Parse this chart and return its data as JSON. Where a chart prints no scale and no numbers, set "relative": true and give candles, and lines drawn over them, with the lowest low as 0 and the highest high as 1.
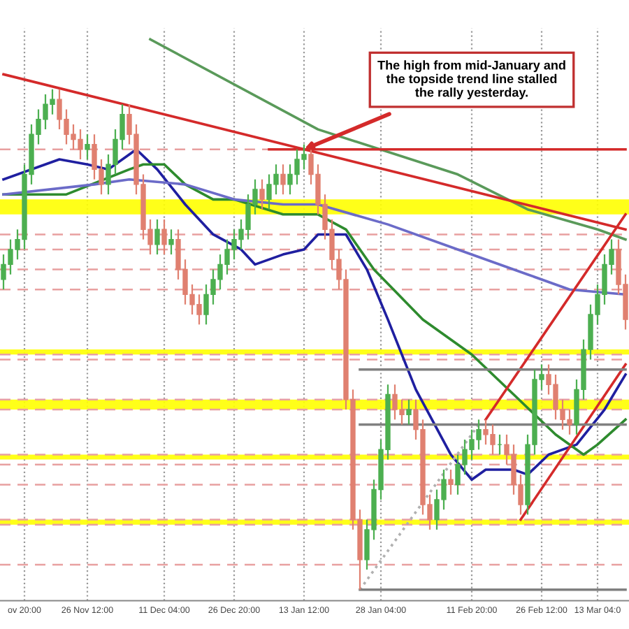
{
  "chart_data": {
    "type": "candlestick",
    "relative": true,
    "categories": [
      null,
      null,
      null,
      "ov 20:00",
      null,
      null,
      null,
      null,
      null,
      null,
      null,
      null,
      "26 Nov 12:00",
      null,
      null,
      null,
      null,
      null,
      null,
      null,
      null,
      null,
      null,
      "11 Dec 04:00",
      null,
      null,
      null,
      null,
      null,
      null,
      null,
      null,
      null,
      "26 Dec 20:00",
      null,
      null,
      null,
      null,
      null,
      null,
      null,
      null,
      null,
      "13 Jan 12:00",
      null,
      null,
      null,
      null,
      null,
      null,
      null,
      null,
      null,
      null,
      "28 Jan 04:00",
      null,
      null,
      null,
      null,
      null,
      null,
      null,
      null,
      null,
      null,
      null,
      null,
      "11 Feb 20:00",
      null,
      null,
      null,
      null,
      null,
      null,
      null,
      null,
      null,
      "26 Feb 12:00",
      null,
      null,
      null,
      null,
      null,
      null,
      null,
      "13 Mar 04:0",
      null,
      null,
      null,
      null
    ],
    "ohlc": [
      [
        0.62,
        0.67,
        0.6,
        0.65
      ],
      [
        0.65,
        0.7,
        0.63,
        0.68
      ],
      [
        0.68,
        0.72,
        0.66,
        0.7
      ],
      [
        0.7,
        0.85,
        0.68,
        0.83
      ],
      [
        0.83,
        0.93,
        0.81,
        0.91
      ],
      [
        0.91,
        0.96,
        0.89,
        0.94
      ],
      [
        0.94,
        0.99,
        0.92,
        0.97
      ],
      [
        0.97,
        1.0,
        0.95,
        0.98
      ],
      [
        0.98,
        1.0,
        0.92,
        0.94
      ],
      [
        0.94,
        0.96,
        0.89,
        0.91
      ],
      [
        0.91,
        0.93,
        0.88,
        0.9
      ],
      [
        0.9,
        0.92,
        0.86,
        0.88
      ],
      [
        0.88,
        0.91,
        0.86,
        0.89
      ],
      [
        0.89,
        0.91,
        0.82,
        0.84
      ],
      [
        0.84,
        0.86,
        0.79,
        0.81
      ],
      [
        0.81,
        0.87,
        0.79,
        0.85
      ],
      [
        0.85,
        0.92,
        0.83,
        0.9
      ],
      [
        0.9,
        0.97,
        0.88,
        0.95
      ],
      [
        0.95,
        0.97,
        0.89,
        0.91
      ],
      [
        0.91,
        0.93,
        0.79,
        0.81
      ],
      [
        0.81,
        0.83,
        0.7,
        0.72
      ],
      [
        0.72,
        0.74,
        0.67,
        0.69
      ],
      [
        0.69,
        0.74,
        0.67,
        0.72
      ],
      [
        0.72,
        0.74,
        0.67,
        0.69
      ],
      [
        0.69,
        0.72,
        0.67,
        0.7
      ],
      [
        0.7,
        0.72,
        0.62,
        0.64
      ],
      [
        0.64,
        0.66,
        0.57,
        0.59
      ],
      [
        0.59,
        0.61,
        0.55,
        0.57
      ],
      [
        0.57,
        0.59,
        0.53,
        0.55
      ],
      [
        0.55,
        0.61,
        0.53,
        0.59
      ],
      [
        0.59,
        0.64,
        0.57,
        0.62
      ],
      [
        0.62,
        0.67,
        0.6,
        0.65
      ],
      [
        0.65,
        0.7,
        0.63,
        0.68
      ],
      [
        0.68,
        0.72,
        0.66,
        0.7
      ],
      [
        0.7,
        0.74,
        0.68,
        0.72
      ],
      [
        0.72,
        0.79,
        0.7,
        0.77
      ],
      [
        0.77,
        0.82,
        0.75,
        0.8
      ],
      [
        0.8,
        0.82,
        0.76,
        0.78
      ],
      [
        0.78,
        0.83,
        0.76,
        0.81
      ],
      [
        0.81,
        0.85,
        0.79,
        0.83
      ],
      [
        0.83,
        0.85,
        0.79,
        0.81
      ],
      [
        0.81,
        0.85,
        0.79,
        0.83
      ],
      [
        0.83,
        0.88,
        0.81,
        0.86
      ],
      [
        0.86,
        0.89,
        0.84,
        0.87
      ],
      [
        0.87,
        0.89,
        0.81,
        0.83
      ],
      [
        0.83,
        0.85,
        0.75,
        0.77
      ],
      [
        0.77,
        0.79,
        0.7,
        0.72
      ],
      [
        0.72,
        0.74,
        0.64,
        0.66
      ],
      [
        0.66,
        0.68,
        0.6,
        0.62
      ],
      [
        0.62,
        0.64,
        0.36,
        0.38
      ],
      [
        0.38,
        0.4,
        0.12,
        0.14
      ],
      [
        0.14,
        0.16,
        0.0,
        0.06
      ],
      [
        0.06,
        0.14,
        0.04,
        0.12
      ],
      [
        0.12,
        0.22,
        0.1,
        0.2
      ],
      [
        0.2,
        0.3,
        0.18,
        0.28
      ],
      [
        0.28,
        0.41,
        0.26,
        0.39
      ],
      [
        0.39,
        0.41,
        0.34,
        0.36
      ],
      [
        0.36,
        0.38,
        0.33,
        0.35
      ],
      [
        0.35,
        0.38,
        0.33,
        0.36
      ],
      [
        0.36,
        0.38,
        0.3,
        0.32
      ],
      [
        0.32,
        0.34,
        0.15,
        0.17
      ],
      [
        0.17,
        0.19,
        0.12,
        0.14
      ],
      [
        0.14,
        0.2,
        0.12,
        0.18
      ],
      [
        0.18,
        0.24,
        0.16,
        0.22
      ],
      [
        0.22,
        0.24,
        0.19,
        0.21
      ],
      [
        0.21,
        0.27,
        0.19,
        0.25
      ],
      [
        0.25,
        0.3,
        0.23,
        0.28
      ],
      [
        0.28,
        0.32,
        0.26,
        0.3
      ],
      [
        0.3,
        0.34,
        0.28,
        0.32
      ],
      [
        0.32,
        0.34,
        0.29,
        0.31
      ],
      [
        0.31,
        0.33,
        0.27,
        0.29
      ],
      [
        0.29,
        0.31,
        0.27,
        0.29
      ],
      [
        0.29,
        0.31,
        0.25,
        0.27
      ],
      [
        0.27,
        0.29,
        0.19,
        0.21
      ],
      [
        0.21,
        0.23,
        0.15,
        0.17
      ],
      [
        0.17,
        0.31,
        0.15,
        0.29
      ],
      [
        0.29,
        0.44,
        0.27,
        0.42
      ],
      [
        0.42,
        0.45,
        0.4,
        0.43
      ],
      [
        0.43,
        0.45,
        0.39,
        0.41
      ],
      [
        0.41,
        0.43,
        0.34,
        0.36
      ],
      [
        0.36,
        0.38,
        0.32,
        0.34
      ],
      [
        0.34,
        0.36,
        0.31,
        0.33
      ],
      [
        0.33,
        0.42,
        0.31,
        0.4
      ],
      [
        0.4,
        0.5,
        0.38,
        0.48
      ],
      [
        0.48,
        0.57,
        0.46,
        0.55
      ],
      [
        0.55,
        0.61,
        0.53,
        0.59
      ],
      [
        0.59,
        0.67,
        0.57,
        0.65
      ],
      [
        0.65,
        0.7,
        0.63,
        0.68
      ],
      [
        0.68,
        0.7,
        0.59,
        0.61
      ],
      [
        0.61,
        0.63,
        0.52,
        0.54
      ]
    ],
    "series": [
      {
        "type": "line",
        "color": "#1f1fa0",
        "values": [
          0.82,
          null,
          null,
          null,
          null,
          null,
          null,
          null,
          0.86,
          null,
          null,
          null,
          0.85,
          null,
          null,
          0.84,
          null,
          null,
          0.87,
          0.88,
          null,
          null,
          0.84,
          null,
          null,
          null,
          0.77,
          null,
          null,
          null,
          0.71,
          null,
          null,
          null,
          0.68,
          null,
          0.65,
          null,
          null,
          null,
          0.67,
          null,
          null,
          0.68,
          null,
          0.71,
          null,
          null,
          null,
          0.71,
          null,
          null,
          0.64,
          null,
          null,
          0.54,
          null,
          null,
          null,
          0.4,
          null,
          null,
          null,
          null,
          0.27,
          null,
          null,
          0.22,
          null,
          0.24,
          null,
          null,
          null,
          0.24,
          null,
          0.23,
          null,
          null,
          0.27,
          null,
          null,
          null,
          0.29,
          null,
          null,
          null,
          0.36,
          null,
          null,
          0.43
        ]
      },
      {
        "type": "line",
        "color": "#2e8b2e",
        "values": [
          0.79,
          null,
          null,
          null,
          null,
          null,
          null,
          null,
          null,
          0.79,
          null,
          null,
          null,
          null,
          null,
          null,
          null,
          null,
          0.84,
          null,
          0.85,
          null,
          null,
          0.85,
          null,
          null,
          0.81,
          null,
          null,
          null,
          0.78,
          null,
          null,
          0.78,
          null,
          null,
          null,
          null,
          null,
          null,
          0.75,
          null,
          null,
          null,
          null,
          0.75,
          null,
          null,
          null,
          0.72,
          null,
          null,
          null,
          0.64,
          null,
          null,
          null,
          null,
          null,
          null,
          0.54,
          null,
          null,
          null,
          null,
          null,
          null,
          0.47,
          null,
          null,
          null,
          null,
          null,
          0.39,
          null,
          null,
          null,
          null,
          null,
          0.31,
          null,
          null,
          null,
          0.27,
          null,
          0.29,
          null,
          null,
          null,
          0.34
        ]
      },
      {
        "type": "line",
        "color": "#6b6bc8",
        "values": [
          0.79,
          null,
          null,
          null,
          null,
          null,
          null,
          null,
          null,
          null,
          null,
          null,
          null,
          0.81,
          null,
          null,
          null,
          null,
          0.82,
          null,
          null,
          null,
          null,
          null,
          null,
          null,
          0.81,
          null,
          null,
          null,
          null,
          null,
          null,
          0.78,
          null,
          null,
          null,
          null,
          null,
          null,
          0.77,
          null,
          null,
          null,
          null,
          0.77,
          null,
          null,
          null,
          null,
          null,
          null,
          null,
          null,
          null,
          0.73,
          null,
          null,
          null,
          null,
          null,
          null,
          null,
          null,
          null,
          0.68,
          null,
          null,
          null,
          null,
          null,
          null,
          null,
          null,
          null,
          0.63,
          null,
          null,
          null,
          null,
          null,
          0.6,
          null,
          null,
          null,
          null,
          null,
          null,
          null,
          0.59
        ]
      },
      {
        "type": "line",
        "color": "#5a9a5a",
        "values": [
          null,
          null,
          null,
          null,
          null,
          null,
          null,
          null,
          null,
          null,
          null,
          null,
          null,
          null,
          null,
          null,
          null,
          null,
          null,
          null,
          null,
          1.1,
          null,
          null,
          null,
          null,
          null,
          null,
          null,
          null,
          null,
          null,
          null,
          null,
          null,
          null,
          null,
          null,
          null,
          null,
          null,
          null,
          null,
          null,
          null,
          0.92,
          null,
          null,
          null,
          null,
          null,
          null,
          null,
          null,
          null,
          null,
          null,
          null,
          null,
          null,
          null,
          null,
          null,
          null,
          null,
          0.83,
          null,
          null,
          null,
          null,
          null,
          null,
          null,
          null,
          null,
          0.76,
          null,
          null,
          null,
          null,
          null,
          null,
          null,
          null,
          null,
          0.72,
          null,
          null,
          null,
          0.7
        ]
      },
      {
        "type": "line",
        "color": "#d42a2a",
        "values": [
          1.03,
          null,
          null,
          null,
          null,
          null,
          null,
          null,
          null,
          null,
          null,
          null,
          null,
          null,
          null,
          null,
          null,
          null,
          null,
          null,
          null,
          null,
          null,
          null,
          null,
          null,
          null,
          null,
          null,
          null,
          null,
          null,
          null,
          null,
          null,
          null,
          null,
          null,
          null,
          null,
          null,
          null,
          null,
          null,
          null,
          null,
          null,
          null,
          null,
          null,
          null,
          null,
          null,
          null,
          null,
          null,
          null,
          null,
          null,
          null,
          null,
          null,
          null,
          null,
          null,
          null,
          null,
          null,
          null,
          null,
          null,
          null,
          null,
          null,
          null,
          null,
          null,
          null,
          null,
          null,
          null,
          null,
          null,
          null,
          null,
          null,
          null,
          null,
          null,
          0.72
        ]
      },
      {
        "type": "line",
        "color": "#d42a2a",
        "values": [
          null,
          null,
          null,
          null,
          null,
          null,
          null,
          null,
          null,
          null,
          null,
          null,
          null,
          null,
          null,
          null,
          null,
          null,
          null,
          null,
          null,
          null,
          null,
          null,
          null,
          null,
          null,
          null,
          null,
          null,
          null,
          null,
          null,
          null,
          null,
          null,
          null,
          null,
          0.88,
          null,
          null,
          null,
          null,
          null,
          null,
          null,
          null,
          null,
          null,
          null,
          null,
          null,
          null,
          null,
          null,
          null,
          null,
          null,
          null,
          null,
          null,
          null,
          null,
          null,
          null,
          null,
          null,
          null,
          null,
          null,
          null,
          null,
          null,
          null,
          null,
          null,
          null,
          null,
          null,
          null,
          null,
          null,
          null,
          null,
          null,
          null,
          null,
          null,
          null,
          0.88
        ]
      },
      {
        "type": "line",
        "color": "#d42a2a",
        "values": [
          null,
          null,
          null,
          null,
          null,
          null,
          null,
          null,
          null,
          null,
          null,
          null,
          null,
          null,
          null,
          null,
          null,
          null,
          null,
          null,
          null,
          null,
          null,
          null,
          null,
          null,
          null,
          null,
          null,
          null,
          null,
          null,
          null,
          null,
          null,
          null,
          null,
          null,
          null,
          null,
          null,
          null,
          null,
          null,
          null,
          null,
          null,
          null,
          null,
          null,
          null,
          null,
          null,
          null,
          null,
          null,
          null,
          null,
          null,
          null,
          null,
          null,
          null,
          null,
          null,
          null,
          null,
          null,
          null,
          0.34,
          null,
          null,
          null,
          null,
          null,
          null,
          null,
          null,
          null,
          null,
          null,
          null,
          null,
          null,
          null,
          null,
          null,
          null,
          null,
          0.75
        ]
      },
      {
        "type": "line",
        "color": "#d42a2a",
        "values": [
          null,
          null,
          null,
          null,
          null,
          null,
          null,
          null,
          null,
          null,
          null,
          null,
          null,
          null,
          null,
          null,
          null,
          null,
          null,
          null,
          null,
          null,
          null,
          null,
          null,
          null,
          null,
          null,
          null,
          null,
          null,
          null,
          null,
          null,
          null,
          null,
          null,
          null,
          null,
          null,
          null,
          null,
          null,
          null,
          null,
          null,
          null,
          null,
          null,
          null,
          null,
          null,
          null,
          null,
          null,
          null,
          null,
          null,
          null,
          null,
          null,
          null,
          null,
          null,
          null,
          null,
          null,
          null,
          null,
          null,
          null,
          null,
          null,
          null,
          0.14,
          null,
          null,
          null,
          null,
          null,
          null,
          null,
          null,
          null,
          null,
          null,
          null,
          null,
          null,
          0.45
        ]
      },
      {
        "type": "line",
        "color": "#b0b0b0",
        "line_style": "dotted",
        "values": [
          null,
          null,
          null,
          null,
          null,
          null,
          null,
          null,
          null,
          null,
          null,
          null,
          null,
          null,
          null,
          null,
          null,
          null,
          null,
          null,
          null,
          null,
          null,
          null,
          null,
          null,
          null,
          null,
          null,
          null,
          null,
          null,
          null,
          null,
          null,
          null,
          null,
          null,
          null,
          null,
          null,
          null,
          null,
          null,
          null,
          null,
          null,
          null,
          null,
          null,
          null,
          0.0,
          null,
          null,
          null,
          null,
          null,
          null,
          null,
          null,
          null,
          null,
          null,
          null,
          null,
          null,
          null,
          null,
          0.33,
          null,
          null,
          null,
          null,
          null,
          null,
          null,
          null,
          null,
          null,
          null,
          null,
          null,
          null,
          null,
          null,
          null,
          null,
          null,
          null,
          null
        ]
      },
      {
        "type": "line",
        "color": "#808080",
        "values": [
          null,
          null,
          null,
          null,
          null,
          null,
          null,
          null,
          null,
          null,
          null,
          null,
          null,
          null,
          null,
          null,
          null,
          null,
          null,
          null,
          null,
          null,
          null,
          null,
          null,
          null,
          null,
          null,
          null,
          null,
          null,
          null,
          null,
          null,
          null,
          null,
          null,
          null,
          null,
          null,
          null,
          null,
          null,
          null,
          null,
          null,
          null,
          null,
          null,
          null,
          null,
          0.44,
          null,
          null,
          null,
          null,
          null,
          null,
          null,
          null,
          null,
          null,
          null,
          null,
          null,
          null,
          null,
          null,
          null,
          null,
          null,
          null,
          null,
          null,
          null,
          null,
          null,
          null,
          null,
          null,
          null,
          null,
          null,
          null,
          null,
          null,
          null,
          null,
          null,
          0.44
        ]
      },
      {
        "type": "line",
        "color": "#808080",
        "values": [
          null,
          null,
          null,
          null,
          null,
          null,
          null,
          null,
          null,
          null,
          null,
          null,
          null,
          null,
          null,
          null,
          null,
          null,
          null,
          null,
          null,
          null,
          null,
          null,
          null,
          null,
          null,
          null,
          null,
          null,
          null,
          null,
          null,
          null,
          null,
          null,
          null,
          null,
          null,
          null,
          null,
          null,
          null,
          null,
          null,
          null,
          null,
          null,
          null,
          null,
          null,
          0.33,
          null,
          null,
          null,
          null,
          null,
          null,
          null,
          null,
          null,
          null,
          null,
          null,
          null,
          null,
          null,
          null,
          null,
          null,
          null,
          null,
          null,
          null,
          null,
          null,
          null,
          null,
          null,
          null,
          null,
          null,
          null,
          null,
          null,
          null,
          null,
          null,
          null,
          0.33
        ]
      },
      {
        "type": "line",
        "color": "#808080",
        "values": [
          null,
          null,
          null,
          null,
          null,
          null,
          null,
          null,
          null,
          null,
          null,
          null,
          null,
          null,
          null,
          null,
          null,
          null,
          null,
          null,
          null,
          null,
          null,
          null,
          null,
          null,
          null,
          null,
          null,
          null,
          null,
          null,
          null,
          null,
          null,
          null,
          null,
          null,
          null,
          null,
          null,
          null,
          null,
          null,
          null,
          null,
          null,
          null,
          null,
          null,
          null,
          0.0,
          null,
          null,
          null,
          null,
          null,
          null,
          null,
          null,
          null,
          null,
          null,
          null,
          null,
          null,
          null,
          null,
          null,
          null,
          null,
          null,
          null,
          null,
          null,
          null,
          null,
          null,
          null,
          null,
          null,
          null,
          null,
          null,
          null,
          null,
          null,
          null,
          null,
          0.0
        ]
      }
    ],
    "grid": "x",
    "bands": [
      {
        "axis": "y",
        "from": 0.75,
        "to": 0.78,
        "color": "#ffff00"
      },
      {
        "axis": "y",
        "from": 0.47,
        "to": 0.48,
        "color": "#ffff00"
      },
      {
        "axis": "y",
        "from": 0.36,
        "to": 0.38,
        "color": "#ffff00"
      },
      {
        "axis": "y",
        "from": 0.26,
        "to": 0.27,
        "color": "#ffff00"
      },
      {
        "axis": "y",
        "from": 0.13,
        "to": 0.14,
        "color": "#ffff00"
      }
    ],
    "ref_lines": [
      {
        "axis": "y",
        "value": 0.88,
        "color": "#e8a0a0",
        "line_style": "dashed"
      },
      {
        "axis": "y",
        "value": 0.71,
        "color": "#e8a0a0",
        "line_style": "dashed"
      },
      {
        "axis": "y",
        "value": 0.68,
        "color": "#e8a0a0",
        "line_style": "dashed"
      },
      {
        "axis": "y",
        "value": 0.64,
        "color": "#e8a0a0",
        "line_style": "dashed"
      },
      {
        "axis": "y",
        "value": 0.6,
        "color": "#e8a0a0",
        "line_style": "dashed"
      },
      {
        "axis": "y",
        "value": 0.47,
        "color": "#e8a0a0",
        "line_style": "dashed"
      },
      {
        "axis": "y",
        "value": 0.46,
        "color": "#e8a0a0",
        "line_style": "dashed"
      },
      {
        "axis": "y",
        "value": 0.38,
        "color": "#e8a0a0",
        "line_style": "dashed"
      },
      {
        "axis": "y",
        "value": 0.36,
        "color": "#e8a0a0",
        "line_style": "dashed"
      },
      {
        "axis": "y",
        "value": 0.27,
        "color": "#e8a0a0",
        "line_style": "dashed"
      },
      {
        "axis": "y",
        "value": 0.25,
        "color": "#e8a0a0",
        "line_style": "dashed"
      },
      {
        "axis": "y",
        "value": 0.21,
        "color": "#e8a0a0",
        "line_style": "dashed"
      },
      {
        "axis": "y",
        "value": 0.14,
        "color": "#e8a0a0",
        "line_style": "dashed"
      },
      {
        "axis": "y",
        "value": 0.13,
        "color": "#e8a0a0",
        "line_style": "dashed"
      },
      {
        "axis": "y",
        "value": 0.05,
        "color": "#e8a0a0",
        "line_style": "dashed"
      }
    ],
    "annotations": [
      {
        "text": "The high from mid-January and\nthe topside trend line stalled\nthe rally yesterday.",
        "x": "13 Jan 12:00",
        "y": 0.88
      }
    ]
  }
}
